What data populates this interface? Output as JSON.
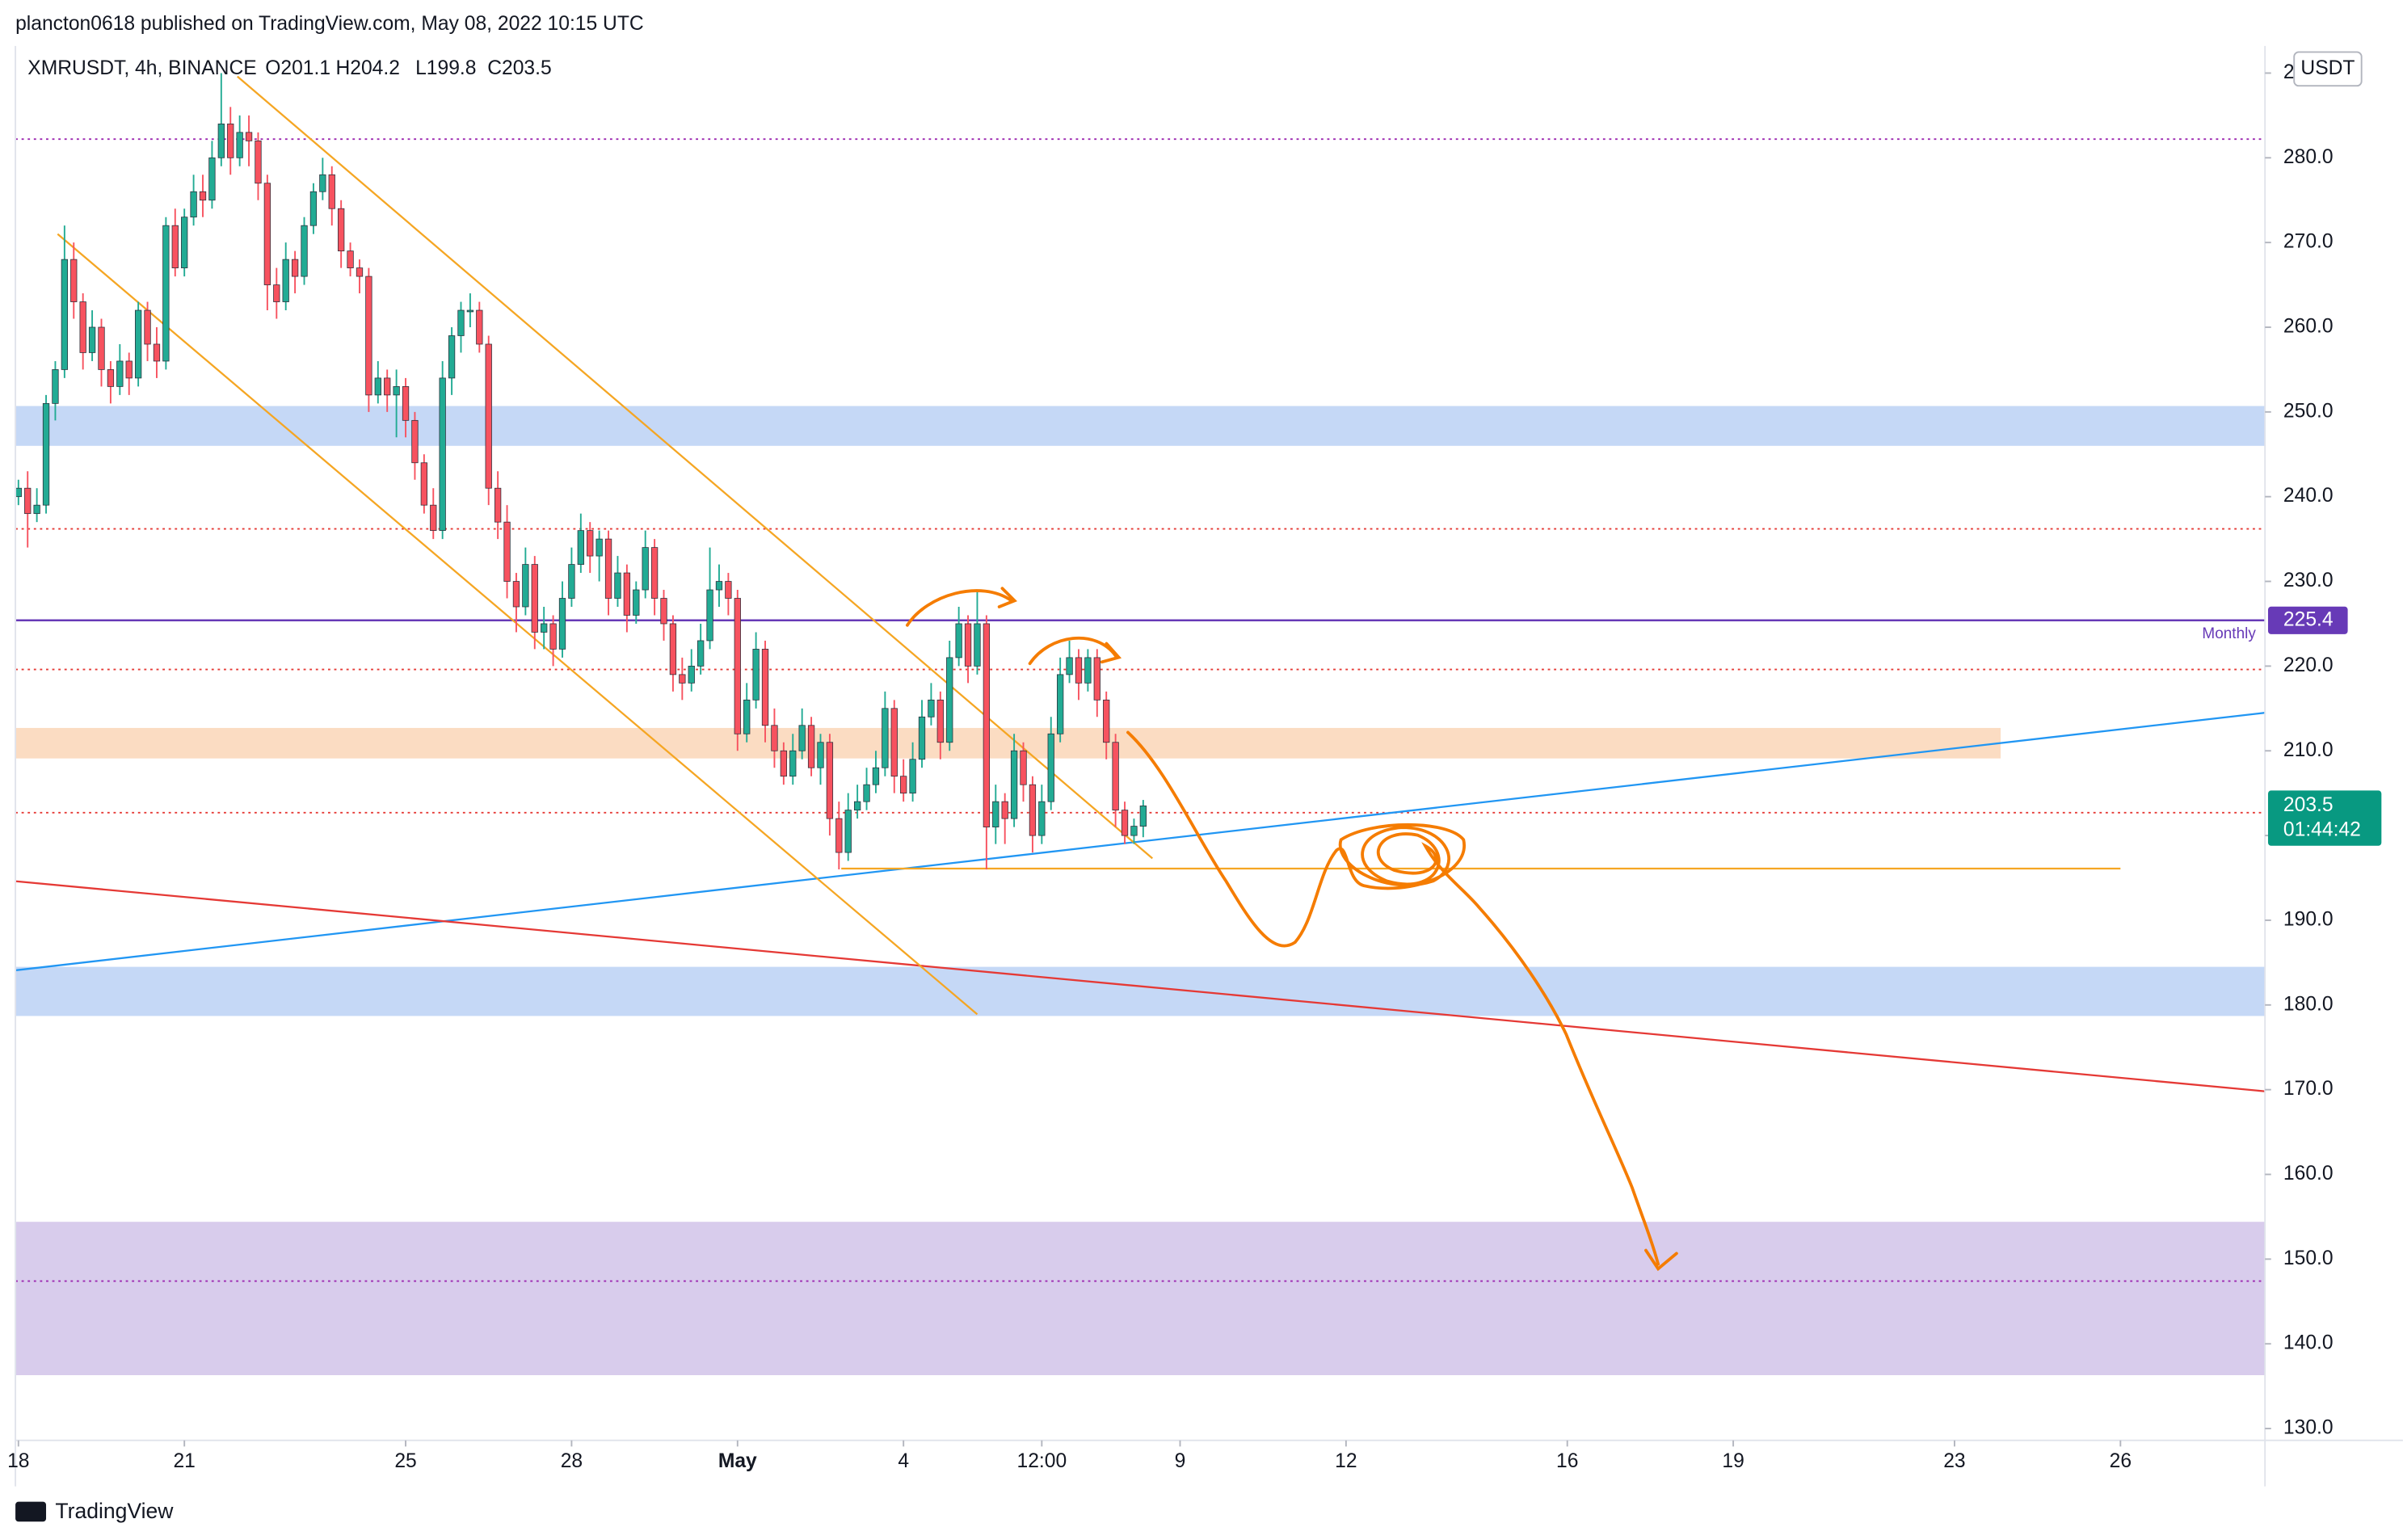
{
  "header": {
    "published": "plancton0618 published on TradingView.com, May 08, 2022 10:15 UTC",
    "symbol": "XMRUSDT, 4h, BINANCE",
    "ohlc": [
      "O201.1",
      "H204.2",
      "L199.8",
      "C203.5"
    ],
    "footer": "TradingView"
  },
  "chart_data": {
    "type": "candlestick",
    "currency": "USDT",
    "up_color": "#22ab94",
    "down_color": "#f7525f",
    "x": [
      0,
      4,
      8,
      12,
      16,
      20,
      24,
      28,
      32,
      36,
      40,
      44,
      48,
      52,
      56,
      60,
      64,
      68,
      72,
      76,
      80,
      84,
      88,
      92,
      96,
      100,
      104,
      108,
      112,
      116,
      120,
      124,
      128,
      132,
      136,
      140,
      144,
      148,
      152,
      156,
      160,
      164,
      168,
      172,
      176,
      180,
      184,
      188,
      192,
      196,
      200,
      204,
      208,
      212,
      216,
      220,
      224,
      228,
      232,
      236,
      240,
      244,
      248,
      252,
      256,
      260,
      264,
      268,
      272,
      276,
      280,
      284,
      288,
      292,
      296,
      300,
      304,
      308,
      312,
      316,
      320,
      324,
      328,
      332,
      336,
      340,
      344,
      348,
      352,
      356,
      360,
      364,
      368,
      372,
      376,
      380,
      384,
      388,
      392,
      396,
      400,
      404,
      408,
      412,
      416,
      420,
      424,
      428,
      432,
      436,
      440,
      444,
      448,
      452,
      456,
      460,
      464,
      468,
      472,
      476,
      480,
      484,
      488
    ],
    "open": [
      240,
      241,
      238,
      239,
      251,
      255,
      268,
      263,
      257,
      260,
      255,
      253,
      256,
      254,
      262,
      258,
      256,
      272,
      267,
      273,
      276,
      275,
      280,
      284,
      280,
      283,
      282,
      277,
      265,
      263,
      268,
      266,
      272,
      276,
      278,
      274,
      269,
      267,
      266,
      252,
      254,
      252,
      253,
      249,
      244,
      239,
      236,
      254,
      259,
      262,
      262,
      258,
      241,
      237,
      230,
      227,
      232,
      224,
      225,
      222,
      228,
      232,
      236,
      233,
      235,
      228,
      231,
      226,
      229,
      234,
      228,
      225,
      219,
      218,
      220,
      223,
      229,
      230,
      228,
      212,
      216,
      222,
      213,
      210,
      207,
      210,
      213,
      208,
      211,
      202,
      198,
      203,
      204,
      206,
      208,
      215,
      207,
      205,
      209,
      214,
      216,
      211,
      221,
      225,
      220,
      225,
      201,
      204,
      202,
      210,
      206,
      200,
      204,
      212,
      219,
      221,
      218,
      221,
      216,
      211,
      203,
      200,
      201.1
    ],
    "high": [
      242,
      243,
      241,
      252,
      256,
      272,
      270,
      264,
      262,
      261,
      256,
      258,
      257,
      263,
      263,
      260,
      273,
      274,
      274,
      278,
      278,
      282,
      290,
      286,
      285,
      285,
      283,
      278,
      267,
      270,
      269,
      273,
      277,
      280,
      279,
      275,
      270,
      268,
      267,
      256,
      255,
      255,
      254,
      250,
      245,
      241,
      256,
      260,
      263,
      264,
      263,
      259,
      243,
      239,
      231,
      234,
      233,
      227,
      226,
      230,
      234,
      238,
      237,
      236,
      236,
      233,
      232,
      230,
      236,
      235,
      229,
      226,
      221,
      222,
      225,
      234,
      232,
      231,
      229,
      218,
      224,
      223,
      215,
      211,
      212,
      215,
      214,
      212,
      212,
      204,
      205,
      206,
      208,
      210,
      217,
      216,
      209,
      211,
      216,
      218,
      217,
      223,
      227,
      226,
      229,
      226,
      206,
      205,
      212,
      211,
      207,
      206,
      214,
      221,
      223,
      222,
      222,
      222,
      217,
      212,
      204,
      202,
      204.2
    ],
    "low": [
      239,
      234,
      237,
      238,
      249,
      254,
      261,
      255,
      256,
      253,
      251,
      252,
      252,
      253,
      256,
      254,
      255,
      266,
      266,
      272,
      273,
      274,
      279,
      278,
      279,
      279,
      275,
      262,
      261,
      262,
      264,
      265,
      271,
      275,
      272,
      267,
      266,
      264,
      250,
      251,
      250,
      247,
      247,
      242,
      238,
      235,
      235,
      252,
      257,
      260,
      257,
      239,
      235,
      228,
      224,
      226,
      222,
      222,
      220,
      221,
      227,
      231,
      231,
      230,
      226,
      227,
      224,
      225,
      228,
      226,
      223,
      217,
      216,
      217,
      219,
      222,
      227,
      226,
      210,
      211,
      215,
      211,
      208,
      206,
      206,
      209,
      207,
      206,
      200,
      196,
      197,
      202,
      203,
      205,
      207,
      205,
      204,
      204,
      208,
      213,
      209,
      210,
      220,
      218,
      219,
      196,
      199,
      199,
      201,
      204,
      198,
      199,
      203,
      211,
      218,
      216,
      217,
      214,
      209,
      201,
      199,
      199,
      199.8
    ],
    "close": [
      241,
      238,
      239,
      251,
      255,
      268,
      263,
      257,
      260,
      255,
      253,
      256,
      254,
      262,
      258,
      256,
      272,
      267,
      273,
      276,
      275,
      280,
      284,
      280,
      283,
      282,
      277,
      265,
      263,
      268,
      266,
      272,
      276,
      278,
      274,
      269,
      267,
      266,
      252,
      254,
      252,
      253,
      249,
      244,
      239,
      236,
      254,
      259,
      262,
      262,
      258,
      241,
      237,
      230,
      227,
      232,
      224,
      225,
      222,
      228,
      232,
      236,
      233,
      235,
      228,
      231,
      226,
      229,
      234,
      228,
      225,
      219,
      218,
      220,
      223,
      229,
      230,
      228,
      212,
      216,
      222,
      213,
      210,
      207,
      210,
      213,
      208,
      211,
      202,
      198,
      203,
      204,
      206,
      208,
      215,
      207,
      205,
      209,
      214,
      216,
      211,
      221,
      225,
      220,
      225,
      201,
      204,
      202,
      210,
      206,
      200,
      204,
      212,
      219,
      221,
      218,
      221,
      216,
      211,
      203,
      200,
      201.1,
      203.5
    ],
    "xlim": [
      -1.3,
      974.7
    ],
    "ylim": [
      128.6,
      293.2
    ],
    "xticks": [
      {
        "value": 0,
        "label": "18"
      },
      {
        "value": 72,
        "label": "21"
      },
      {
        "value": 168,
        "label": "25"
      },
      {
        "value": 240,
        "label": "28"
      },
      {
        "value": 312,
        "label": "May"
      },
      {
        "value": 384,
        "label": "4"
      },
      {
        "value": 444,
        "label": "12:00"
      },
      {
        "value": 504,
        "label": "9"
      },
      {
        "value": 576,
        "label": "12"
      },
      {
        "value": 672,
        "label": "16"
      },
      {
        "value": 744,
        "label": "19"
      },
      {
        "value": 840,
        "label": "23"
      },
      {
        "value": 912,
        "label": "26"
      }
    ],
    "yticks": [
      {
        "value": 130,
        "label": "130.0"
      },
      {
        "value": 140,
        "label": "140.0"
      },
      {
        "value": 150,
        "label": "150.0"
      },
      {
        "value": 160,
        "label": "160.0"
      },
      {
        "value": 170,
        "label": "170.0"
      },
      {
        "value": 180,
        "label": "180.0"
      },
      {
        "value": 190,
        "label": "190.0"
      },
      {
        "value": 200,
        "label": "200.0"
      },
      {
        "value": 210,
        "label": "210.0"
      },
      {
        "value": 220,
        "label": "220.0"
      },
      {
        "value": 230,
        "label": "230.0"
      },
      {
        "value": 240,
        "label": "240.0"
      },
      {
        "value": 250,
        "label": "250.0"
      },
      {
        "value": 260,
        "label": "260.0"
      },
      {
        "value": 270,
        "label": "270.0"
      },
      {
        "value": 280,
        "label": "280.0"
      },
      {
        "value": 290,
        "label": "290.0"
      }
    ],
    "zones": [
      {
        "from": 246.0,
        "to": 250.7,
        "color": "#c5d8f6"
      },
      {
        "from": 209.1,
        "to": 212.7,
        "end": 860,
        "color": "#fbdcc2"
      },
      {
        "from": 178.7,
        "to": 184.5,
        "color": "#c5d8f6"
      },
      {
        "from": 136.3,
        "to": 154.4,
        "color": "#d8ccec"
      }
    ],
    "hlines": [
      {
        "value": 282.2,
        "color": "#9c27b0"
      },
      {
        "value": 236.2,
        "color": "#e53935"
      },
      {
        "value": 219.6,
        "color": "#e53935"
      },
      {
        "value": 202.7,
        "color": "#e53935"
      },
      {
        "value": 147.4,
        "color": "#9c27b0"
      }
    ],
    "monthly": {
      "value": 225.4,
      "name": "Monthly",
      "color": "#673ab7"
    },
    "trendlines": [
      {
        "x": [
          -1,
          975
        ],
        "y": [
          184.1,
          214.5
        ],
        "color": "#2196f3"
      },
      {
        "x": [
          -1,
          975
        ],
        "y": [
          194.6,
          169.8
        ],
        "color": "#e53935"
      },
      {
        "x": [
          95,
          492
        ],
        "y": [
          289.6,
          197.3
        ],
        "color": "#f5a623"
      },
      {
        "x": [
          17,
          416
        ],
        "y": [
          271,
          178.9
        ],
        "color": "#f5a623"
      },
      {
        "x": [
          357,
          912
        ],
        "y": [
          196.1,
          196.1
        ],
        "color": "#f5a623"
      }
    ],
    "last_price": {
      "value": 203.5,
      "countdown": "01:44:42",
      "color": "#089981"
    }
  }
}
